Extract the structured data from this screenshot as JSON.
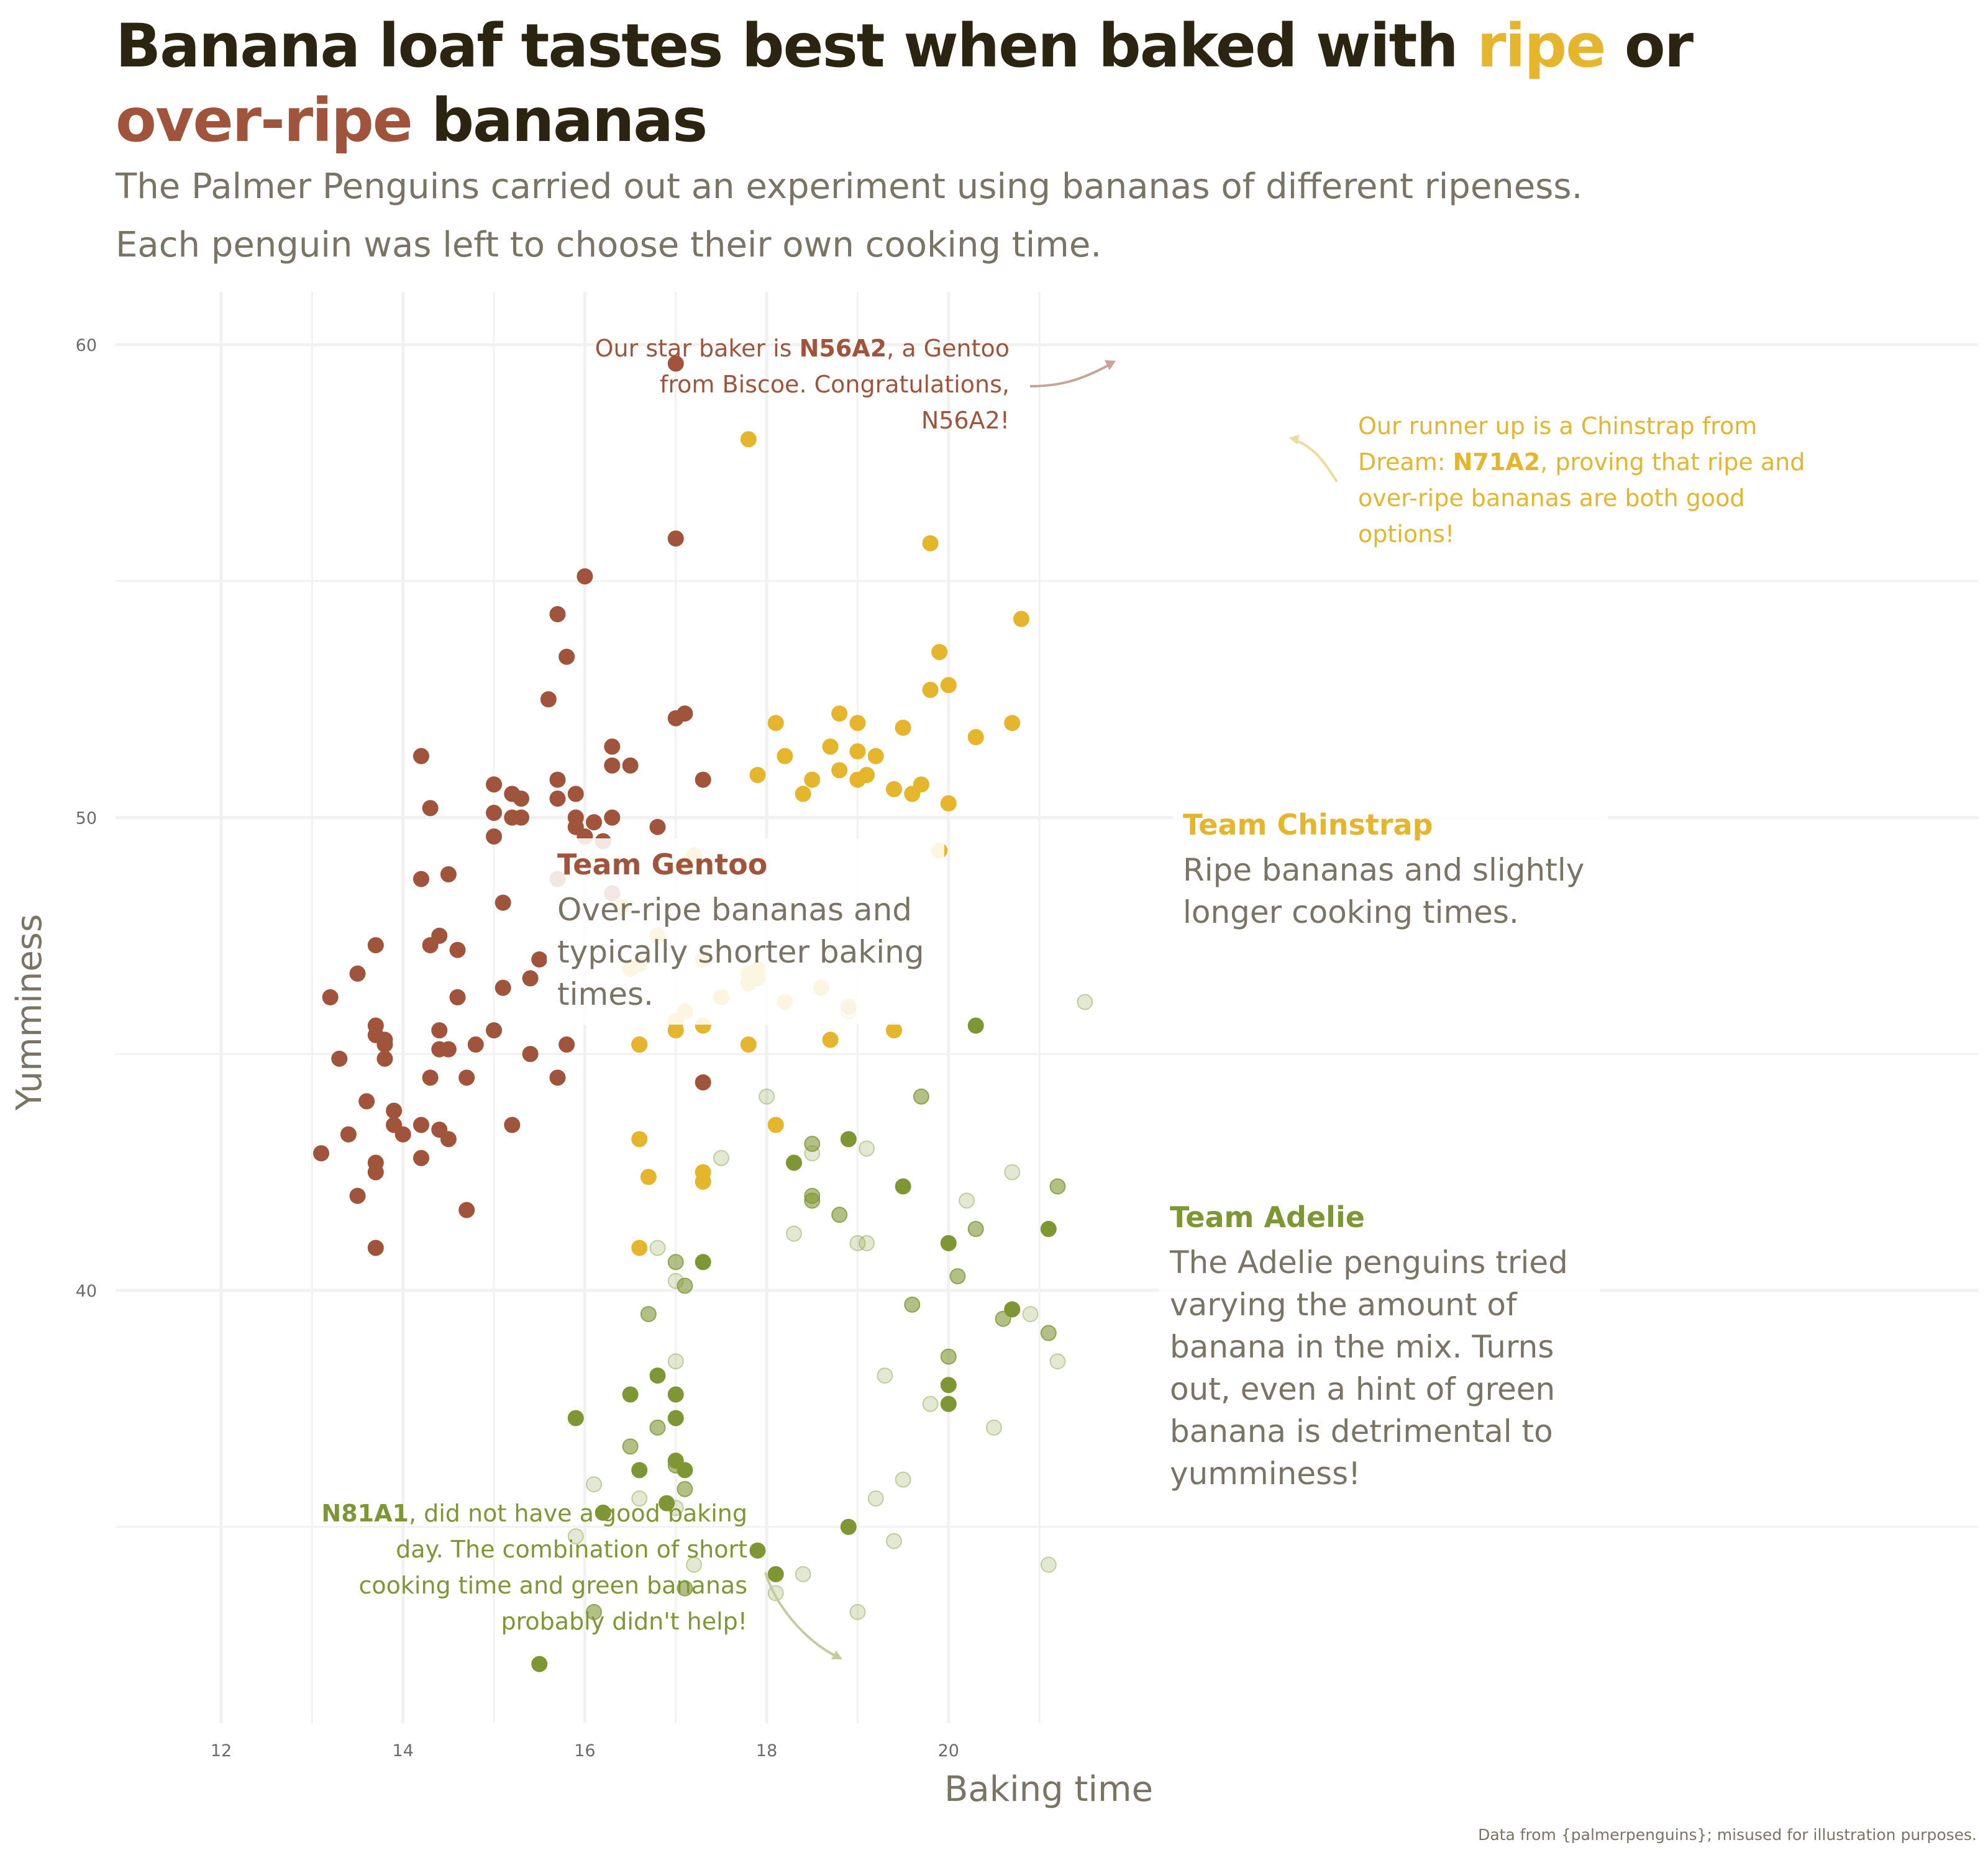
{
  "title": {
    "part1": "Banana loaf tastes best when baked with ",
    "ripe": "ripe",
    "part2": " or",
    "over_ripe": "over-ripe",
    "part3": " bananas"
  },
  "subtitle": {
    "line1": "The Palmer Penguins carried out an experiment using bananas of different ripeness.",
    "line2": "Each penguin was left to choose their own cooking time."
  },
  "caption": "Data from {palmerpenguins}; misused for illustration purposes.",
  "colors": {
    "gentoo": "#a0543b",
    "chinstrap": "#e6b52e",
    "adelie": "#7f9634",
    "title": "#2b2410",
    "text": "#7a7466",
    "grid": "#f1f1f1"
  },
  "annotations": {
    "star": {
      "pre": "Our star baker is ",
      "id": "N56A2",
      "l1rest": ", a Gentoo",
      "l2": "from Biscoe. Congratulations,",
      "l3": "N56A2!"
    },
    "runner": {
      "l1": "Our runner up is a Chinstrap from",
      "l2pre": "Dream: ",
      "id": "N71A2",
      "l2rest": ", proving that ripe and",
      "l3": "over-ripe bananas are both good",
      "l4": "options!"
    },
    "poor": {
      "id": "N81A1",
      "l1rest": ", did not have a good baking",
      "l2": "day. The combination of short",
      "l3": "cooking time and green bananas",
      "l4": "probably didn't help!"
    }
  },
  "teams": {
    "gentoo": {
      "title": "Team Gentoo",
      "lines": [
        "Over-ripe bananas and",
        "typically shorter baking",
        "times."
      ]
    },
    "chinstrap": {
      "title": "Team Chinstrap",
      "lines": [
        "Ripe bananas and slightly",
        "longer cooking times."
      ]
    },
    "adelie": {
      "title": "Team Adelie",
      "lines": [
        "The Adelie penguins tried",
        "varying the amount of",
        "banana in the mix. Turns",
        "out, even a hint of green",
        "banana is detrimental to",
        "yumminess!"
      ]
    }
  },
  "chart_data": {
    "type": "scatter",
    "xlabel": "Baking time",
    "ylabel": "Yumminess",
    "xlim": [
      11.4,
      21.7
    ],
    "ylim": [
      31.1,
      61.0
    ],
    "xticks": [
      12,
      14,
      16,
      18,
      20
    ],
    "yticks": [
      40,
      50,
      60
    ],
    "grid": true,
    "series": [
      {
        "name": "Gentoo",
        "points": [
          [
            17.0,
            59.6
          ],
          [
            17.0,
            55.9
          ],
          [
            16.0,
            55.1
          ],
          [
            15.7,
            54.3
          ],
          [
            15.8,
            53.4
          ],
          [
            15.6,
            52.5
          ],
          [
            17.0,
            52.1
          ],
          [
            17.1,
            52.2
          ],
          [
            14.2,
            51.3
          ],
          [
            16.3,
            51.5
          ],
          [
            16.3,
            51.1
          ],
          [
            16.5,
            51.1
          ],
          [
            15.0,
            50.7
          ],
          [
            15.2,
            50.5
          ],
          [
            15.3,
            50.4
          ],
          [
            15.7,
            50.8
          ],
          [
            15.9,
            50.5
          ],
          [
            17.3,
            50.8
          ],
          [
            14.3,
            50.2
          ],
          [
            15.0,
            50.1
          ],
          [
            15.2,
            50.0
          ],
          [
            15.3,
            50.0
          ],
          [
            15.7,
            50.4
          ],
          [
            15.9,
            50.0
          ],
          [
            15.9,
            49.8
          ],
          [
            16.1,
            49.9
          ],
          [
            16.3,
            50.0
          ],
          [
            16.0,
            49.6
          ],
          [
            16.2,
            49.5
          ],
          [
            16.8,
            49.8
          ],
          [
            15.0,
            49.6
          ],
          [
            16.3,
            48.4
          ],
          [
            13.7,
            47.3
          ],
          [
            13.2,
            46.2
          ],
          [
            13.5,
            46.7
          ],
          [
            13.7,
            45.4
          ],
          [
            13.7,
            45.6
          ],
          [
            13.8,
            45.3
          ],
          [
            13.8,
            45.2
          ],
          [
            13.8,
            44.9
          ],
          [
            13.3,
            44.9
          ],
          [
            13.6,
            44.0
          ],
          [
            13.9,
            43.8
          ],
          [
            13.9,
            43.5
          ],
          [
            14.0,
            43.3
          ],
          [
            13.4,
            43.3
          ],
          [
            13.1,
            42.9
          ],
          [
            13.7,
            42.7
          ],
          [
            13.7,
            42.5
          ],
          [
            13.5,
            42.0
          ],
          [
            13.7,
            40.9
          ],
          [
            14.2,
            43.5
          ],
          [
            14.2,
            42.8
          ],
          [
            14.3,
            44.5
          ],
          [
            14.4,
            45.1
          ],
          [
            14.4,
            43.4
          ],
          [
            14.5,
            45.1
          ],
          [
            14.5,
            43.2
          ],
          [
            14.7,
            44.5
          ],
          [
            14.7,
            41.7
          ],
          [
            14.8,
            45.2
          ],
          [
            15.0,
            45.5
          ],
          [
            15.2,
            43.5
          ],
          [
            15.4,
            45.0
          ],
          [
            15.7,
            44.5
          ],
          [
            15.8,
            45.2
          ],
          [
            16.6,
            45.2
          ],
          [
            17.3,
            44.4
          ],
          [
            14.4,
            45.5
          ],
          [
            14.6,
            46.2
          ],
          [
            15.1,
            46.4
          ],
          [
            15.5,
            47.0
          ],
          [
            15.1,
            48.2
          ],
          [
            14.4,
            47.5
          ],
          [
            14.2,
            48.7
          ],
          [
            14.5,
            48.8
          ],
          [
            14.3,
            47.3
          ],
          [
            15.7,
            48.7
          ],
          [
            14.6,
            47.2
          ],
          [
            15.4,
            46.6
          ]
        ]
      },
      {
        "name": "Chinstrap",
        "points": [
          [
            17.8,
            58.0
          ],
          [
            19.8,
            55.8
          ],
          [
            20.8,
            54.2
          ],
          [
            19.9,
            53.5
          ],
          [
            19.8,
            52.7
          ],
          [
            20.0,
            52.8
          ],
          [
            18.8,
            52.2
          ],
          [
            19.0,
            52.0
          ],
          [
            18.1,
            52.0
          ],
          [
            20.7,
            52.0
          ],
          [
            19.5,
            51.9
          ],
          [
            20.3,
            51.7
          ],
          [
            18.7,
            51.5
          ],
          [
            19.0,
            51.4
          ],
          [
            18.2,
            51.3
          ],
          [
            19.2,
            51.3
          ],
          [
            17.9,
            50.9
          ],
          [
            19.1,
            50.9
          ],
          [
            18.8,
            51.0
          ],
          [
            18.5,
            50.8
          ],
          [
            19.0,
            50.8
          ],
          [
            19.7,
            50.7
          ],
          [
            19.4,
            50.6
          ],
          [
            18.4,
            50.5
          ],
          [
            19.6,
            50.5
          ],
          [
            20.0,
            50.3
          ],
          [
            19.9,
            49.3
          ],
          [
            17.2,
            49.2
          ],
          [
            17.1,
            49.0
          ],
          [
            16.4,
            48.1
          ],
          [
            16.8,
            47.5
          ],
          [
            17.3,
            47.0
          ],
          [
            16.6,
            46.9
          ],
          [
            16.5,
            46.8
          ],
          [
            17.9,
            46.8
          ],
          [
            17.8,
            46.7
          ],
          [
            17.9,
            46.6
          ],
          [
            17.8,
            46.5
          ],
          [
            18.6,
            46.4
          ],
          [
            17.5,
            46.2
          ],
          [
            18.2,
            46.1
          ],
          [
            18.9,
            46.0
          ],
          [
            17.1,
            45.9
          ],
          [
            17.0,
            45.7
          ],
          [
            17.3,
            45.6
          ],
          [
            17.0,
            45.5
          ],
          [
            19.4,
            45.5
          ],
          [
            18.7,
            45.3
          ],
          [
            16.6,
            45.2
          ],
          [
            17.8,
            45.2
          ],
          [
            18.1,
            43.5
          ],
          [
            16.6,
            43.2
          ],
          [
            16.7,
            42.4
          ],
          [
            17.3,
            42.5
          ],
          [
            17.3,
            42.3
          ],
          [
            16.6,
            40.9
          ]
        ]
      },
      {
        "name": "Adelie",
        "points": [
          [
            20.3,
            45.6
          ],
          [
            18.9,
            43.2
          ],
          [
            18.3,
            42.7
          ],
          [
            19.5,
            42.2
          ],
          [
            20.0,
            41.0
          ],
          [
            21.1,
            41.3
          ],
          [
            17.3,
            40.6
          ],
          [
            20.7,
            39.6
          ],
          [
            16.5,
            37.8
          ],
          [
            17.0,
            37.8
          ],
          [
            17.0,
            37.3
          ],
          [
            15.9,
            37.3
          ],
          [
            17.0,
            36.4
          ],
          [
            17.1,
            36.2
          ],
          [
            16.6,
            36.2
          ],
          [
            16.9,
            35.5
          ],
          [
            16.2,
            35.3
          ],
          [
            18.9,
            35.0
          ],
          [
            17.9,
            34.5
          ],
          [
            18.1,
            34.0
          ],
          [
            20.0,
            38.0
          ],
          [
            20.0,
            37.6
          ],
          [
            15.5,
            32.1
          ],
          [
            16.8,
            38.2
          ]
        ]
      },
      {
        "name": "Adelie (faded)",
        "points": [
          [
            19.7,
            44.1
          ],
          [
            18.5,
            43.1
          ],
          [
            21.2,
            42.2
          ],
          [
            20.3,
            41.3
          ],
          [
            20.1,
            40.3
          ],
          [
            17.0,
            40.6
          ],
          [
            17.1,
            40.1
          ],
          [
            16.7,
            39.5
          ],
          [
            21.1,
            39.1
          ],
          [
            20.0,
            38.6
          ],
          [
            17.0,
            36.3
          ],
          [
            16.5,
            36.7
          ],
          [
            16.8,
            37.1
          ],
          [
            17.1,
            35.8
          ],
          [
            16.1,
            33.2
          ],
          [
            17.1,
            33.7
          ],
          [
            18.5,
            42.0
          ],
          [
            18.5,
            41.9
          ],
          [
            18.8,
            41.6
          ],
          [
            19.6,
            39.7
          ],
          [
            20.6,
            39.4
          ]
        ]
      },
      {
        "name": "Adelie (light)",
        "points": [
          [
            21.5,
            46.1
          ],
          [
            18.0,
            44.1
          ],
          [
            19.1,
            43.0
          ],
          [
            18.5,
            42.9
          ],
          [
            20.7,
            42.5
          ],
          [
            20.2,
            41.9
          ],
          [
            17.5,
            42.8
          ],
          [
            16.8,
            40.9
          ],
          [
            17.0,
            40.2
          ],
          [
            17.0,
            38.5
          ],
          [
            21.2,
            38.5
          ],
          [
            20.5,
            37.1
          ],
          [
            19.8,
            37.6
          ],
          [
            16.1,
            35.9
          ],
          [
            16.6,
            35.6
          ],
          [
            17.0,
            35.4
          ],
          [
            15.9,
            34.8
          ],
          [
            17.2,
            34.2
          ],
          [
            18.1,
            33.6
          ],
          [
            18.4,
            34.0
          ],
          [
            19.0,
            33.2
          ],
          [
            19.4,
            34.7
          ],
          [
            21.1,
            34.2
          ],
          [
            19.5,
            36.0
          ],
          [
            19.2,
            35.6
          ],
          [
            18.9,
            45.9
          ],
          [
            19.1,
            41.0
          ],
          [
            19.3,
            38.2
          ],
          [
            20.9,
            39.5
          ],
          [
            19.0,
            41.0
          ],
          [
            18.3,
            41.2
          ]
        ]
      }
    ]
  }
}
